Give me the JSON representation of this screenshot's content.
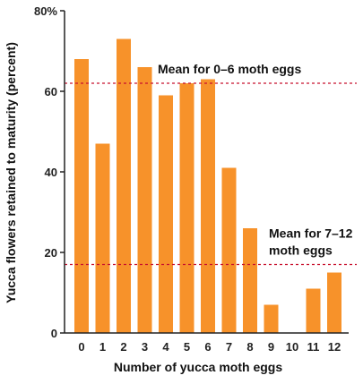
{
  "chart_data": {
    "type": "bar",
    "categories": [
      "0",
      "1",
      "2",
      "3",
      "4",
      "5",
      "6",
      "7",
      "8",
      "9",
      "10",
      "11",
      "12"
    ],
    "values": [
      68,
      47,
      73,
      66,
      59,
      62,
      63,
      41,
      26,
      7,
      0,
      11,
      15
    ],
    "xlabel": "Number of yucca moth eggs",
    "ylabel": "Yucca flowers retained to maturity (percent)",
    "ylim": [
      0,
      80
    ],
    "yticks": [
      "0",
      "20",
      "40",
      "60",
      "80%"
    ],
    "ytick_values": [
      0,
      20,
      40,
      60,
      80
    ],
    "grid": false,
    "colors": {
      "bar": "#f7922a",
      "mean_line": "#c8102e"
    },
    "reference_lines": [
      {
        "value": 62,
        "label": "Mean for 0–6 moth eggs"
      },
      {
        "value": 17,
        "label_lines": [
          "Mean for 7–12",
          "moth eggs"
        ]
      }
    ]
  }
}
